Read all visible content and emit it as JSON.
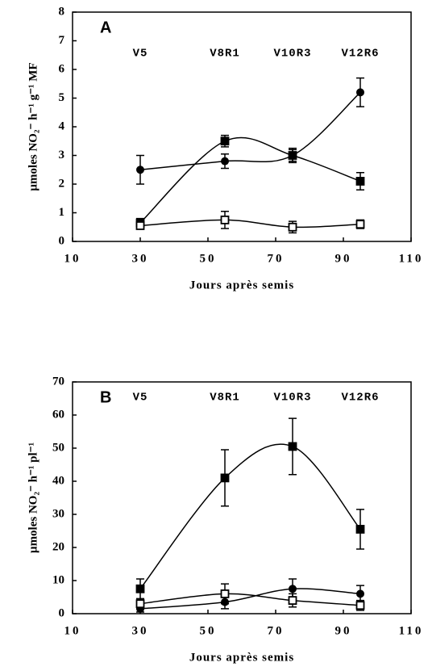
{
  "chart_data": [
    {
      "type": "line",
      "panel_label": "A",
      "x_label": "Jours après semis",
      "y_label": "µmoles NO₂⁻ h⁻¹ g⁻¹ MF",
      "xlim": [
        10,
        110
      ],
      "xticks": [
        10,
        30,
        50,
        70,
        90,
        110
      ],
      "ylim": [
        0,
        8
      ],
      "yticks": [
        0,
        1,
        2,
        3,
        4,
        5,
        6,
        7,
        8
      ],
      "stage_labels": [
        "V5",
        "V8R1",
        "V10R3",
        "V12R6"
      ],
      "x": [
        30,
        55,
        75,
        95
      ],
      "series": [
        {
          "marker": "circle",
          "color": "#000",
          "values": [
            2.5,
            2.8,
            3.0,
            5.2
          ],
          "errors": [
            0.5,
            0.25,
            0.2,
            0.5
          ]
        },
        {
          "marker": "square",
          "color": "#000",
          "values": [
            0.65,
            3.5,
            3.0,
            2.1
          ],
          "errors": [
            0.15,
            0.2,
            0.25,
            0.3
          ]
        },
        {
          "marker": "open-square",
          "color": "#000",
          "values": [
            0.55,
            0.75,
            0.5,
            0.6
          ],
          "errors": [
            0.1,
            0.3,
            0.2,
            0.15
          ]
        }
      ]
    },
    {
      "type": "line",
      "panel_label": "B",
      "x_label": "Jours après semis",
      "y_label": "µmoles NO₂⁻ h⁻¹ pl⁻¹",
      "xlim": [
        10,
        110
      ],
      "xticks": [
        10,
        30,
        50,
        70,
        90,
        110
      ],
      "ylim": [
        0,
        70
      ],
      "yticks": [
        0,
        10,
        20,
        30,
        40,
        50,
        60,
        70
      ],
      "stage_labels": [
        "V5",
        "V8R1",
        "V10R3",
        "V12R6"
      ],
      "x": [
        30,
        55,
        75,
        95
      ],
      "series": [
        {
          "marker": "square",
          "color": "#000",
          "values": [
            7.5,
            41,
            50.5,
            25.5
          ],
          "errors": [
            3,
            8.5,
            8.5,
            6
          ]
        },
        {
          "marker": "circle",
          "color": "#000",
          "values": [
            1.5,
            3.5,
            7.5,
            6
          ],
          "errors": [
            1,
            2,
            3,
            2.5
          ]
        },
        {
          "marker": "open-square",
          "color": "#000",
          "values": [
            3,
            6,
            4,
            2.5
          ],
          "errors": [
            1.5,
            3,
            2,
            1.5
          ]
        }
      ]
    }
  ]
}
